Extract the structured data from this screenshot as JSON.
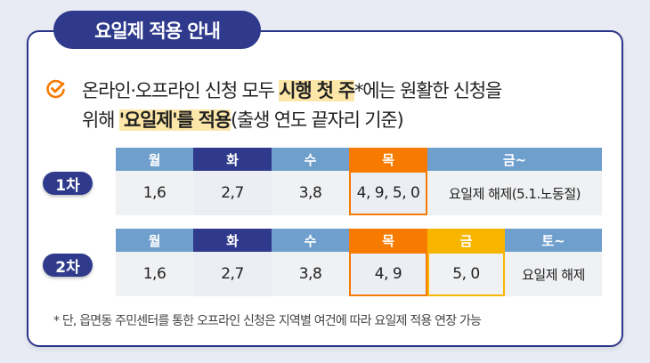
{
  "title": "요일제 적용 안내",
  "notice": {
    "l1_a": "온라인·오프라인 신청 모두 ",
    "l1_hl": "시행 첫 주",
    "l1_b": "*에는 원활한 신청을",
    "l2_a": "위해 ",
    "l2_hl": "'요일제'를 적용",
    "l2_b": "(출생 연도 끝자리 기준)"
  },
  "round1": {
    "label": "1차",
    "headers": [
      "월",
      "화",
      "수",
      "목",
      "금~"
    ],
    "values": [
      "1,6",
      "2,7",
      "3,8",
      "4, 9, 5, 0",
      "요일제 해제(5.1.노동절)"
    ]
  },
  "round2": {
    "label": "2차",
    "headers": [
      "월",
      "화",
      "수",
      "목",
      "금",
      "토~"
    ],
    "values": [
      "1,6",
      "2,7",
      "3,8",
      "4, 9",
      "5, 0",
      "요일제 해제"
    ]
  },
  "footnote": "* 단, 읍면동 주민센터를 통한 오프라인 신청은 지역별 여건에 따라 요일제 적용 연장 가능",
  "colors": {
    "navy": "#2f3a8c",
    "blue": "#6f9fcc",
    "orange": "#f77b00",
    "yellow": "#f7b500",
    "highlight": "#fde7a8"
  }
}
